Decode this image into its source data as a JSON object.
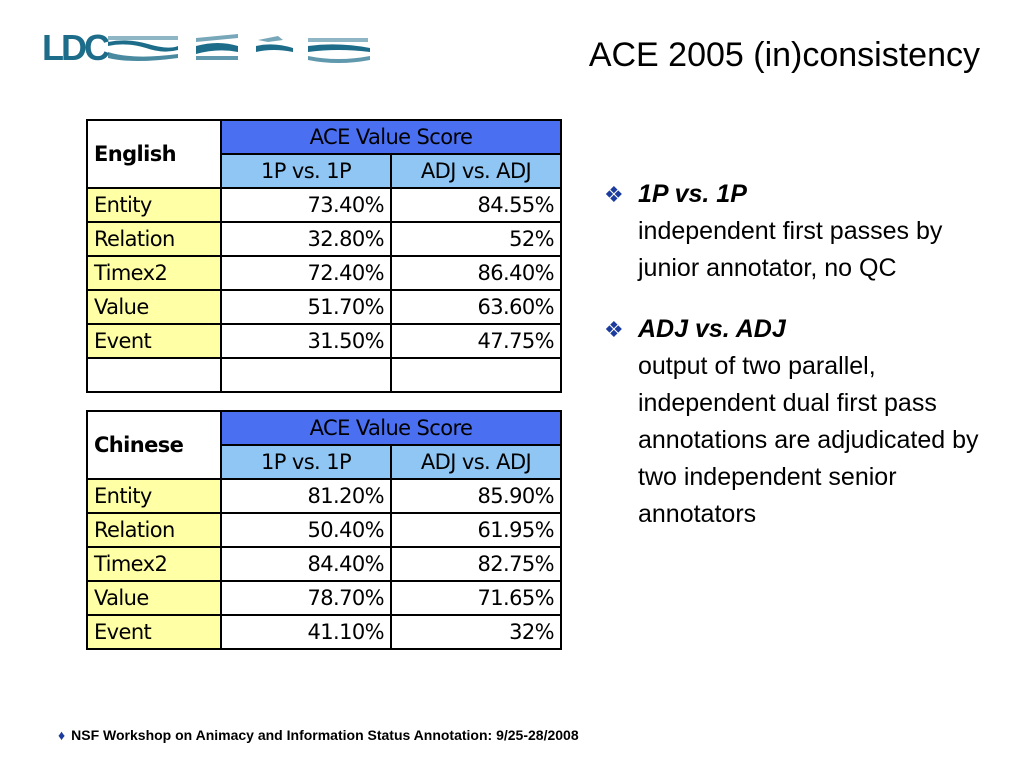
{
  "logo": {
    "text": "LDC"
  },
  "title": "ACE 2005 (in)consistency",
  "tables": {
    "english": {
      "language": "English",
      "header": "ACE Value Score",
      "col1": "1P vs. 1P",
      "col2": "ADJ vs. ADJ",
      "rows": [
        {
          "label": "Entity",
          "v1": "73.40%",
          "v2": "84.55%"
        },
        {
          "label": "Relation",
          "v1": "32.80%",
          "v2": "52%"
        },
        {
          "label": "Timex2",
          "v1": "72.40%",
          "v2": "86.40%"
        },
        {
          "label": "Value",
          "v1": "51.70%",
          "v2": "63.60%"
        },
        {
          "label": "Event",
          "v1": "31.50%",
          "v2": "47.75%"
        }
      ]
    },
    "chinese": {
      "language": "Chinese",
      "header": "ACE Value Score",
      "col1": "1P vs. 1P",
      "col2": "ADJ vs. ADJ",
      "rows": [
        {
          "label": "Entity",
          "v1": "81.20%",
          "v2": "85.90%"
        },
        {
          "label": "Relation",
          "v1": "50.40%",
          "v2": "61.95%"
        },
        {
          "label": "Timex2",
          "v1": "84.40%",
          "v2": "82.75%"
        },
        {
          "label": "Value",
          "v1": "78.70%",
          "v2": "71.65%"
        },
        {
          "label": "Event",
          "v1": "41.10%",
          "v2": "32%"
        }
      ]
    }
  },
  "bullets": [
    {
      "icon": "four-diamond-icon",
      "head": "1P vs. 1P",
      "text": "independent first passes by junior annotator, no QC"
    },
    {
      "icon": "four-diamond-icon",
      "head": "ADJ vs. ADJ",
      "text": "output of two parallel, independent dual first pass annotations are adjudicated by two independent senior annotators"
    }
  ],
  "footer": {
    "icon": "diamond-icon",
    "text": "NSF Workshop on Animacy and Information Status Annotation: 9/25-28/2008"
  },
  "colors": {
    "header_blue": "#4a6ff0",
    "subheader_blue": "#8fc6f3",
    "label_yellow": "#ffffa6",
    "logo_teal": "#1d6d8a",
    "bullet_navy": "#1b3c9c"
  }
}
